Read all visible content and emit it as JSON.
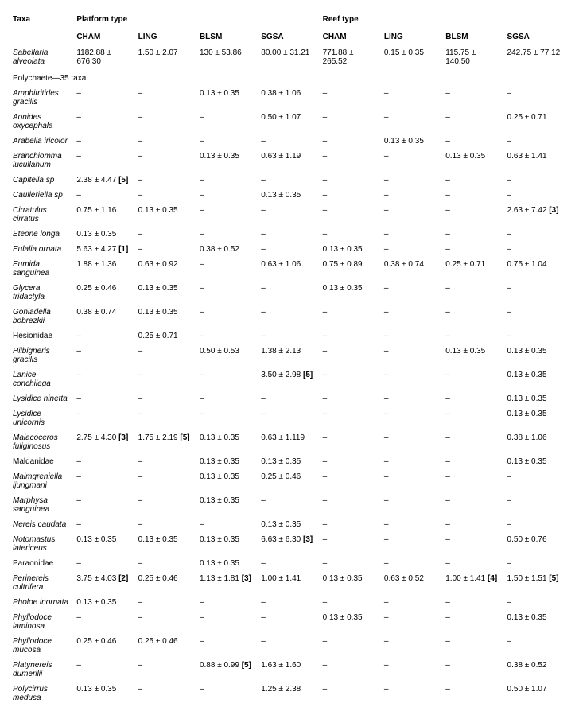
{
  "headers": {
    "taxa": "Taxa",
    "platform": "Platform type",
    "reef": "Reef type",
    "cols": [
      "CHAM",
      "LING",
      "BLSM",
      "SGSA",
      "CHAM",
      "LING",
      "BLSM",
      "SGSA"
    ]
  },
  "section_label": "Polychaete—35 taxa",
  "rows": [
    {
      "taxa": "Sabellaria alveolata",
      "italic": true,
      "vals": [
        "1182.88 ± 676.30",
        "1.50 ± 2.07",
        "130 ± 53.86",
        "80.00 ± 31.21",
        "771.88 ± 265.52",
        "0.15 ± 0.35",
        "115.75 ± 140.50",
        "242.75 ± 77.12"
      ],
      "bn": [
        "",
        "",
        "",
        "",
        "",
        "",
        "",
        ""
      ]
    },
    {
      "section": true
    },
    {
      "taxa": "Amphitritides gracilis",
      "italic": true,
      "vals": [
        "–",
        "–",
        "0.13 ± 0.35",
        "0.38 ± 1.06",
        "–",
        "–",
        "–",
        "–"
      ],
      "bn": [
        "",
        "",
        "",
        "",
        "",
        "",
        "",
        ""
      ]
    },
    {
      "taxa": "Aonides oxycephala",
      "italic": true,
      "vals": [
        "–",
        "–",
        "–",
        "0.50 ± 1.07",
        "–",
        "–",
        "–",
        "0.25 ± 0.71"
      ],
      "bn": [
        "",
        "",
        "",
        "",
        "",
        "",
        "",
        ""
      ]
    },
    {
      "taxa": "Arabella iricolor",
      "italic": true,
      "vals": [
        "–",
        "–",
        "–",
        "–",
        "–",
        "0.13 ± 0.35",
        "–",
        "–"
      ],
      "bn": [
        "",
        "",
        "",
        "",
        "",
        "",
        "",
        ""
      ]
    },
    {
      "taxa": "Branchiomma lucullanum",
      "italic": true,
      "vals": [
        "–",
        "–",
        "0.13 ± 0.35",
        "0.63 ± 1.19",
        "–",
        "–",
        "0.13 ± 0.35",
        "0.63 ± 1.41"
      ],
      "bn": [
        "",
        "",
        "",
        "",
        "",
        "",
        "",
        ""
      ]
    },
    {
      "taxa": "Capitella sp",
      "italic": true,
      "vals": [
        "2.38 ± 4.47 ",
        "–",
        "–",
        "–",
        "–",
        "–",
        "–",
        "–"
      ],
      "bn": [
        "[5]",
        "",
        "",
        "",
        "",
        "",
        "",
        ""
      ]
    },
    {
      "taxa": "Caulleriella sp",
      "italic": true,
      "vals": [
        "–",
        "–",
        "–",
        "0.13 ± 0.35",
        "–",
        "–",
        "–",
        "–"
      ],
      "bn": [
        "",
        "",
        "",
        "",
        "",
        "",
        "",
        ""
      ]
    },
    {
      "taxa": "Cirratulus cirratus",
      "italic": true,
      "vals": [
        "0.75 ± 1.16",
        "0.13 ± 0.35",
        "–",
        "–",
        "–",
        "–",
        "–",
        "2.63 ± 7.42 "
      ],
      "bn": [
        "",
        "",
        "",
        "",
        "",
        "",
        "",
        "[3]"
      ]
    },
    {
      "taxa": "Eteone longa",
      "italic": true,
      "vals": [
        "0.13 ± 0.35",
        "–",
        "–",
        "–",
        "–",
        "–",
        "–",
        "–"
      ],
      "bn": [
        "",
        "",
        "",
        "",
        "",
        "",
        "",
        ""
      ]
    },
    {
      "taxa": "Eulalia ornata",
      "italic": true,
      "vals": [
        "5.63 ± 4.27 ",
        "–",
        "0.38 ± 0.52",
        "–",
        "0.13 ± 0.35",
        "–",
        "–",
        "–"
      ],
      "bn": [
        "[1]",
        "",
        "",
        "",
        "",
        "",
        "",
        ""
      ]
    },
    {
      "taxa": "Eumida sanguinea",
      "italic": true,
      "vals": [
        "1.88 ± 1.36",
        "0.63 ± 0.92",
        "–",
        "0.63 ± 1.06",
        "0.75 ± 0.89",
        "0.38 ± 0.74",
        "0.25 ± 0.71",
        "0.75 ± 1.04"
      ],
      "bn": [
        "",
        "",
        "",
        "",
        "",
        "",
        "",
        ""
      ]
    },
    {
      "taxa": "Glycera tridactyla",
      "italic": true,
      "vals": [
        "0.25 ± 0.46",
        "0.13 ± 0.35",
        "–",
        "–",
        "0.13 ± 0.35",
        "–",
        "–",
        "–"
      ],
      "bn": [
        "",
        "",
        "",
        "",
        "",
        "",
        "",
        ""
      ]
    },
    {
      "taxa": "Goniadella bobrezkii",
      "italic": true,
      "vals": [
        "0.38 ± 0.74",
        "0.13 ± 0.35",
        "–",
        "–",
        "–",
        "–",
        "–",
        "–"
      ],
      "bn": [
        "",
        "",
        "",
        "",
        "",
        "",
        "",
        ""
      ]
    },
    {
      "taxa": "Hesionidae",
      "italic": false,
      "vals": [
        "–",
        "0.25 ± 0.71",
        "–",
        "–",
        "–",
        "–",
        "–",
        "–"
      ],
      "bn": [
        "",
        "",
        "",
        "",
        "",
        "",
        "",
        ""
      ]
    },
    {
      "taxa": "Hilbigneris gracilis",
      "italic": true,
      "vals": [
        "–",
        "–",
        "0.50 ± 0.53",
        "1.38 ± 2.13",
        "–",
        "–",
        "0.13 ± 0.35",
        "0.13 ± 0.35"
      ],
      "bn": [
        "",
        "",
        "",
        "",
        "",
        "",
        "",
        ""
      ]
    },
    {
      "taxa": "Lanice conchilega",
      "italic": true,
      "vals": [
        "–",
        "–",
        "–",
        "3.50 ± 2.98 ",
        "–",
        "–",
        "–",
        "0.13 ± 0.35"
      ],
      "bn": [
        "",
        "",
        "",
        "[5]",
        "",
        "",
        "",
        ""
      ]
    },
    {
      "taxa": "Lysidice ninetta",
      "italic": true,
      "vals": [
        "–",
        "–",
        "–",
        "–",
        "–",
        "–",
        "–",
        "0.13 ± 0.35"
      ],
      "bn": [
        "",
        "",
        "",
        "",
        "",
        "",
        "",
        ""
      ]
    },
    {
      "taxa": "Lysidice unicornis",
      "italic": true,
      "vals": [
        "–",
        "–",
        "–",
        "–",
        "–",
        "–",
        "–",
        "0.13 ± 0.35"
      ],
      "bn": [
        "",
        "",
        "",
        "",
        "",
        "",
        "",
        ""
      ]
    },
    {
      "taxa": "Malacoceros fuliginosus",
      "italic": true,
      "vals": [
        "2.75 ± 4.30 ",
        "1.75 ± 2.19 ",
        "0.13 ± 0.35",
        "0.63 ± 1.119",
        "–",
        "–",
        "–",
        "0.38 ± 1.06"
      ],
      "bn": [
        "[3]",
        "[5]",
        "",
        "",
        "",
        "",
        "",
        ""
      ]
    },
    {
      "taxa": "Maldanidae",
      "italic": false,
      "vals": [
        "–",
        "–",
        "0.13 ± 0.35",
        "0.13 ± 0.35",
        "–",
        "–",
        "–",
        "0.13 ± 0.35"
      ],
      "bn": [
        "",
        "",
        "",
        "",
        "",
        "",
        "",
        ""
      ]
    },
    {
      "taxa": "Malmgreniella ljungmani",
      "italic": true,
      "vals": [
        "–",
        "–",
        "0.13 ± 0.35",
        "0.25 ± 0.46",
        "–",
        "–",
        "–",
        "–"
      ],
      "bn": [
        "",
        "",
        "",
        "",
        "",
        "",
        "",
        ""
      ]
    },
    {
      "taxa": "Marphysa sanguinea",
      "italic": true,
      "vals": [
        "–",
        "–",
        "0.13 ± 0.35",
        "–",
        "–",
        "–",
        "–",
        "–"
      ],
      "bn": [
        "",
        "",
        "",
        "",
        "",
        "",
        "",
        ""
      ]
    },
    {
      "taxa": "Nereis caudata",
      "italic": true,
      "vals": [
        "–",
        "–",
        "–",
        "0.13 ± 0.35",
        "–",
        "–",
        "–",
        "–"
      ],
      "bn": [
        "",
        "",
        "",
        "",
        "",
        "",
        "",
        ""
      ]
    },
    {
      "taxa": "Notomastus latericeus",
      "italic": true,
      "vals": [
        "0.13 ± 0.35",
        "0.13 ± 0.35",
        "0.13 ± 0.35",
        "6.63 ± 6.30 ",
        "–",
        "–",
        "–",
        "0.50 ± 0.76"
      ],
      "bn": [
        "",
        "",
        "",
        "[3]",
        "",
        "",
        "",
        ""
      ]
    },
    {
      "taxa": "Paraonidae",
      "italic": false,
      "vals": [
        "–",
        "–",
        "0.13 ± 0.35",
        "–",
        "–",
        "–",
        "–",
        "–"
      ],
      "bn": [
        "",
        "",
        "",
        "",
        "",
        "",
        "",
        ""
      ]
    },
    {
      "taxa": "Perinereis cultrifera",
      "italic": true,
      "vals": [
        "3.75 ± 4.03 ",
        "0.25 ± 0.46",
        "1.13 ± 1.81 ",
        "1.00 ± 1.41",
        "0.13 ± 0.35",
        "0.63 ± 0.52",
        "1.00 ± 1.41 ",
        "1.50 ± 1.51 "
      ],
      "bn": [
        "[2]",
        "",
        "[3]",
        "",
        "",
        "",
        "[4]",
        "[5]"
      ]
    },
    {
      "taxa": "Pholoe inornata",
      "italic": true,
      "vals": [
        "0.13 ± 0.35",
        "–",
        "–",
        "–",
        "–",
        "–",
        "–",
        "–"
      ],
      "bn": [
        "",
        "",
        "",
        "",
        "",
        "",
        "",
        ""
      ]
    },
    {
      "taxa": "Phyllodoce laminosa",
      "italic": true,
      "vals": [
        "–",
        "–",
        "–",
        "–",
        "0.13 ± 0.35",
        "–",
        "–",
        "0.13 ± 0.35"
      ],
      "bn": [
        "",
        "",
        "",
        "",
        "",
        "",
        "",
        ""
      ]
    },
    {
      "taxa": "Phyllodoce mucosa",
      "italic": true,
      "vals": [
        "0.25 ± 0.46",
        "0.25 ± 0.46",
        "–",
        "–",
        "–",
        "–",
        "–",
        "–"
      ],
      "bn": [
        "",
        "",
        "",
        "",
        "",
        "",
        "",
        ""
      ]
    },
    {
      "taxa": "Platynereis dumerilii",
      "italic": true,
      "vals": [
        "–",
        "–",
        "0.88 ± 0.99 ",
        "1.63 ± 1.60",
        "–",
        "–",
        "–",
        "0.38 ± 0.52"
      ],
      "bn": [
        "",
        "",
        "[5]",
        "",
        "",
        "",
        "",
        ""
      ]
    },
    {
      "taxa": "Polycirrus medusa",
      "italic": true,
      "vals": [
        "0.13 ± 0.35",
        "–",
        "–",
        "1.25 ± 2.38",
        "–",
        "–",
        "–",
        "0.50 ± 1.07"
      ],
      "bn": [
        "",
        "",
        "",
        "",
        "",
        "",
        "",
        ""
      ]
    }
  ]
}
